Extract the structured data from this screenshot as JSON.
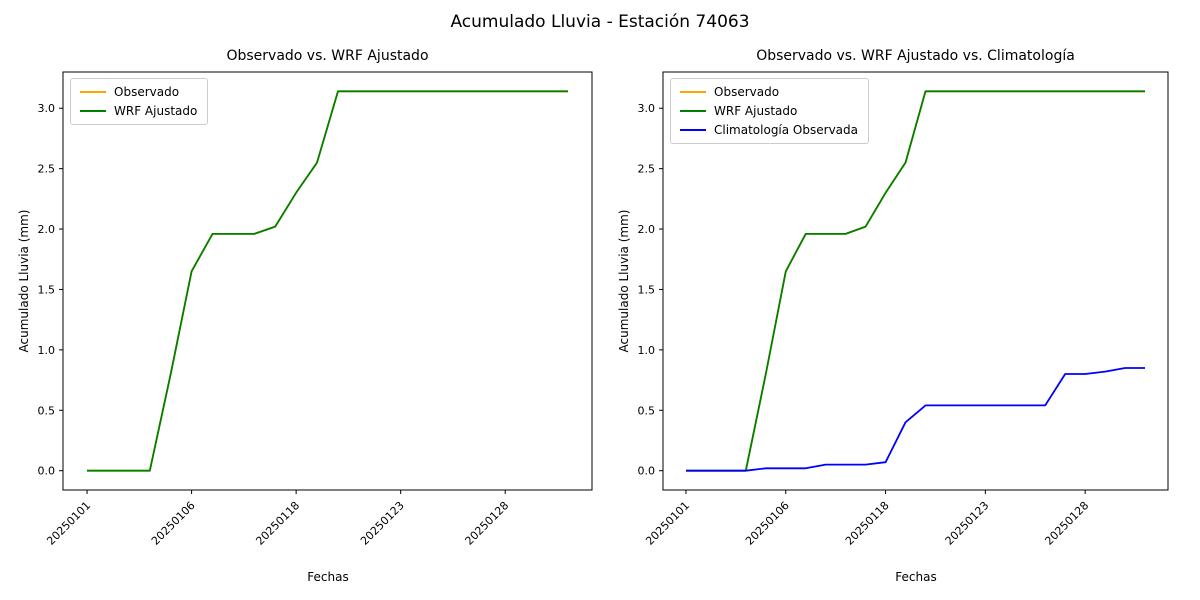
{
  "figure": {
    "title": "Acumulado Lluvia - Estación 74063"
  },
  "chart_data": [
    {
      "type": "line",
      "title": "Observado vs. WRF Ajustado",
      "xlabel": "Fechas",
      "ylabel": "Acumulado Lluvia (mm)",
      "x_tick_labels": [
        "20250101",
        "20250106",
        "20250118",
        "20250123",
        "20250128"
      ],
      "x_tick_indices": [
        0,
        5,
        10,
        15,
        20
      ],
      "y_ticks": [
        0.0,
        0.5,
        1.0,
        1.5,
        2.0,
        2.5,
        3.0
      ],
      "y_tick_labels": [
        "0.0",
        "0.5",
        "1.0",
        "1.5",
        "2.0",
        "2.5",
        "3.0"
      ],
      "xlim": [
        -1.15,
        24.15
      ],
      "ylim": [
        -0.16,
        3.3
      ],
      "grid": false,
      "legend_position": "upper left",
      "note": "Observado line coincides with WRF Ajustado and is hidden beneath it",
      "series": [
        {
          "name": "Observado",
          "color": "#ffa500",
          "values": [
            0.0,
            0.0,
            0.0,
            0.0,
            0.8,
            1.65,
            1.96,
            1.96,
            1.96,
            2.02,
            2.3,
            2.55,
            3.14,
            3.14,
            3.14,
            3.14,
            3.14,
            3.14,
            3.14,
            3.14,
            3.14,
            3.14,
            3.14,
            3.14
          ]
        },
        {
          "name": "WRF Ajustado",
          "color": "#008000",
          "values": [
            0.0,
            0.0,
            0.0,
            0.0,
            0.8,
            1.65,
            1.96,
            1.96,
            1.96,
            2.02,
            2.3,
            2.55,
            3.14,
            3.14,
            3.14,
            3.14,
            3.14,
            3.14,
            3.14,
            3.14,
            3.14,
            3.14,
            3.14,
            3.14
          ]
        }
      ]
    },
    {
      "type": "line",
      "title": "Observado vs. WRF Ajustado vs. Climatología",
      "xlabel": "Fechas",
      "ylabel": "Acumulado Lluvia (mm)",
      "x_tick_labels": [
        "20250101",
        "20250106",
        "20250118",
        "20250123",
        "20250128"
      ],
      "x_tick_indices": [
        0,
        5,
        10,
        15,
        20
      ],
      "y_ticks": [
        0.0,
        0.5,
        1.0,
        1.5,
        2.0,
        2.5,
        3.0
      ],
      "y_tick_labels": [
        "0.0",
        "0.5",
        "1.0",
        "1.5",
        "2.0",
        "2.5",
        "3.0"
      ],
      "xlim": [
        -1.15,
        24.15
      ],
      "ylim": [
        -0.16,
        3.3
      ],
      "grid": false,
      "legend_position": "upper left",
      "note": "Observado line coincides with WRF Ajustado and is hidden beneath it",
      "series": [
        {
          "name": "Observado",
          "color": "#ffa500",
          "values": [
            0.0,
            0.0,
            0.0,
            0.0,
            0.8,
            1.65,
            1.96,
            1.96,
            1.96,
            2.02,
            2.3,
            2.55,
            3.14,
            3.14,
            3.14,
            3.14,
            3.14,
            3.14,
            3.14,
            3.14,
            3.14,
            3.14,
            3.14,
            3.14
          ]
        },
        {
          "name": "WRF Ajustado",
          "color": "#008000",
          "values": [
            0.0,
            0.0,
            0.0,
            0.0,
            0.8,
            1.65,
            1.96,
            1.96,
            1.96,
            2.02,
            2.3,
            2.55,
            3.14,
            3.14,
            3.14,
            3.14,
            3.14,
            3.14,
            3.14,
            3.14,
            3.14,
            3.14,
            3.14,
            3.14
          ]
        },
        {
          "name": "Climatología Observada",
          "color": "#0000ff",
          "values": [
            0.0,
            0.0,
            0.0,
            0.0,
            0.02,
            0.02,
            0.02,
            0.05,
            0.05,
            0.05,
            0.07,
            0.4,
            0.54,
            0.54,
            0.54,
            0.54,
            0.54,
            0.54,
            0.54,
            0.8,
            0.8,
            0.82,
            0.85,
            0.85
          ]
        }
      ]
    }
  ]
}
